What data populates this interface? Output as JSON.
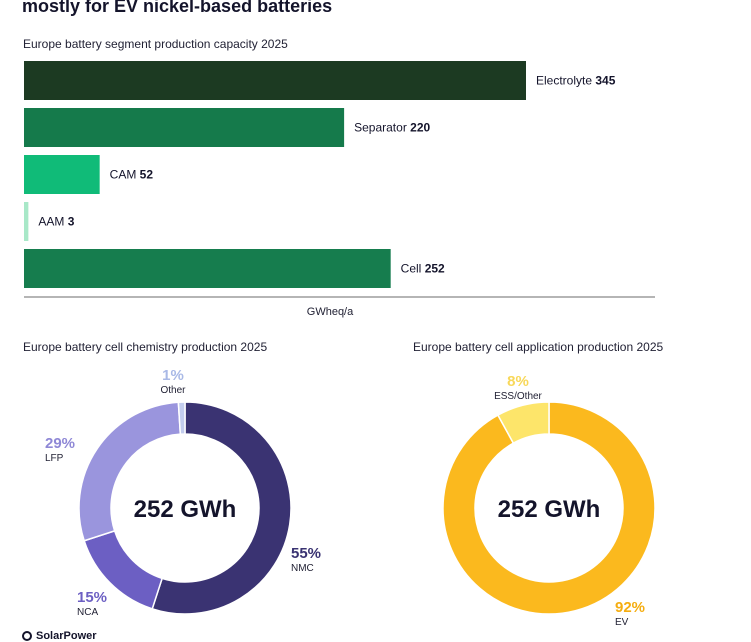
{
  "headline": "mostly for EV nickel-based batteries",
  "footer_logo": "SolarPower",
  "chart_data": [
    {
      "type": "bar",
      "orientation": "horizontal",
      "title": "Europe battery segment production capacity 2025",
      "xlabel": "GWheq/a",
      "categories": [
        "Electrolyte",
        "Separator",
        "CAM",
        "AAM",
        "Cell"
      ],
      "values": [
        345,
        220,
        52,
        3,
        252
      ],
      "colors": [
        "#1c3a22",
        "#157a4b",
        "#10bb78",
        "#a8e8c8",
        "#167d4e"
      ],
      "xlim": [
        0,
        400
      ],
      "grid": false,
      "legend": "none"
    },
    {
      "type": "pie",
      "donut": true,
      "title": "Europe battery cell chemistry production 2025",
      "center_label": "252 GWh",
      "categories": [
        "NMC",
        "NCA",
        "LFP",
        "Other"
      ],
      "values": [
        55,
        15,
        29,
        1
      ],
      "value_labels": [
        "55%",
        "15%",
        "29%",
        "1%"
      ],
      "colors": [
        "#3a3372",
        "#6c5fc3",
        "#9a95dd",
        "#c3cdee"
      ],
      "label_colors": [
        "#3a3372",
        "#6c5fc3",
        "#8f88d6",
        "#a9b9e6"
      ]
    },
    {
      "type": "pie",
      "donut": true,
      "title": "Europe battery cell application production 2025",
      "center_label": "252 GWh",
      "categories": [
        "EV",
        "ESS/Other"
      ],
      "values": [
        92,
        8
      ],
      "value_labels": [
        "92%",
        "8%"
      ],
      "colors": [
        "#fbb91e",
        "#fde56a"
      ],
      "label_colors": [
        "#f5ad10",
        "#f8d85a"
      ]
    }
  ]
}
